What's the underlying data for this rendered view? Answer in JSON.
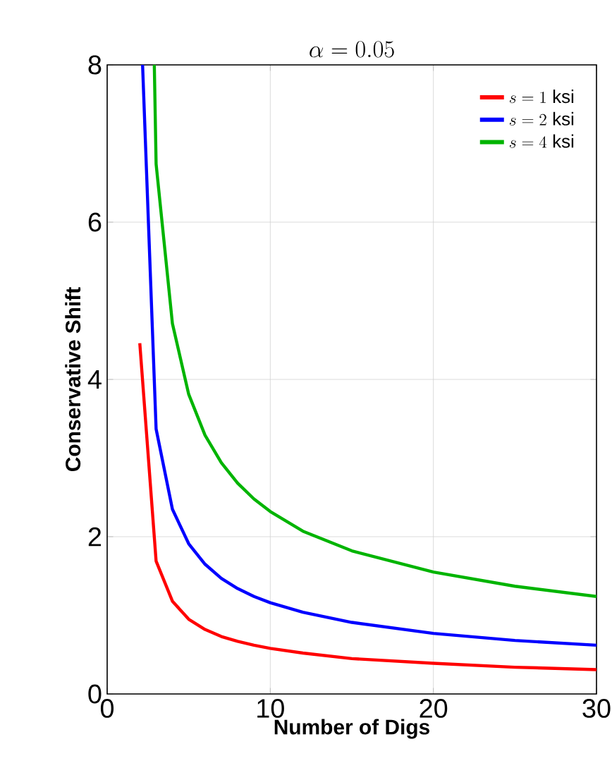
{
  "chart_data": {
    "type": "line",
    "title": "\\alpha = 0.05",
    "xlabel": "Number of Digs",
    "ylabel": "Conservative Shift",
    "x": [
      2,
      3,
      4,
      5,
      6,
      7,
      8,
      9,
      10,
      12,
      15,
      20,
      25,
      30
    ],
    "series": [
      {
        "name": "s = 1~\\mathrm{ksi}",
        "color": "#ff0000",
        "values": [
          4.46,
          1.69,
          1.18,
          0.95,
          0.82,
          0.73,
          0.67,
          0.62,
          0.58,
          0.52,
          0.45,
          0.39,
          0.34,
          0.31
        ]
      },
      {
        "name": "s = 2~\\mathrm{ksi}",
        "color": "#0000ff",
        "x": [
          2.17,
          3,
          4,
          5,
          6,
          7,
          8,
          9,
          10,
          12,
          15,
          20,
          25,
          30
        ],
        "values": [
          8,
          3.37,
          2.35,
          1.91,
          1.65,
          1.47,
          1.34,
          1.24,
          1.16,
          1.04,
          0.91,
          0.77,
          0.68,
          0.62
        ]
      },
      {
        "name": "s = 4~\\mathrm{ksi}",
        "color": "#00b400",
        "x": [
          2.89,
          3,
          4,
          5,
          6,
          7,
          8,
          9,
          10,
          12,
          15,
          20,
          25,
          30
        ],
        "values": [
          8,
          6.74,
          4.71,
          3.81,
          3.29,
          2.94,
          2.68,
          2.48,
          2.32,
          2.07,
          1.82,
          1.55,
          1.37,
          1.24
        ]
      }
    ],
    "xlim": [
      0,
      30
    ],
    "ylim": [
      0,
      8
    ],
    "xticks": [
      0,
      10,
      20,
      30
    ],
    "yticks": [
      0,
      2,
      4,
      6,
      8
    ],
    "grid": true,
    "legend": "top right",
    "marker": "none",
    "line_style": "solid"
  }
}
